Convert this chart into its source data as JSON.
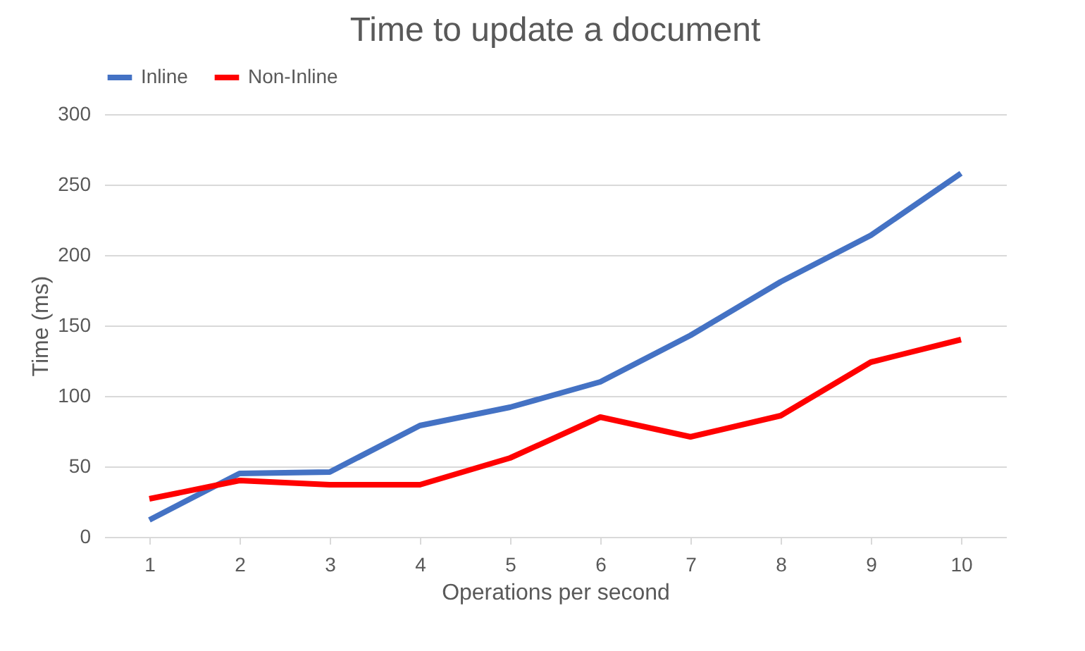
{
  "chart_data": {
    "type": "line",
    "title": "Time to update a document",
    "xlabel": "Operations per second",
    "ylabel": "Time (ms)",
    "categories": [
      "1",
      "2",
      "3",
      "4",
      "5",
      "6",
      "7",
      "8",
      "9",
      "10"
    ],
    "series": [
      {
        "name": "Inline",
        "color": "#4472c4",
        "values": [
          12,
          45,
          46,
          79,
          92,
          110,
          143,
          181,
          214,
          258
        ]
      },
      {
        "name": "Non-Inline",
        "color": "#ff0000",
        "values": [
          27,
          40,
          37,
          37,
          56,
          85,
          71,
          86,
          124,
          140
        ]
      }
    ],
    "ylim": [
      0,
      300
    ],
    "yticks": [
      0,
      50,
      100,
      150,
      200,
      250,
      300
    ],
    "grid": "y",
    "legend": "top",
    "marker": "none",
    "line_style": "solid"
  }
}
